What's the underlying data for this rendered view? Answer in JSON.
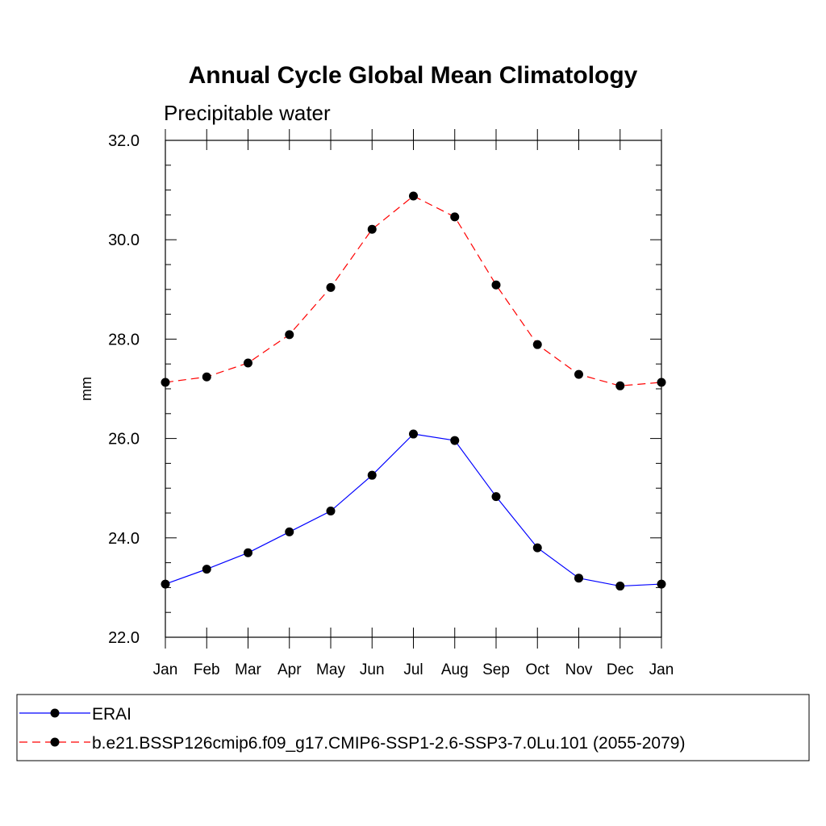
{
  "chart_data": {
    "type": "line",
    "title": "Annual Cycle Global Mean Climatology",
    "subtitle": "Precipitable water",
    "xlabel": "",
    "ylabel": "mm",
    "categories": [
      "Jan",
      "Feb",
      "Mar",
      "Apr",
      "May",
      "Jun",
      "Jul",
      "Aug",
      "Sep",
      "Oct",
      "Nov",
      "Dec",
      "Jan"
    ],
    "ylim": [
      22.0,
      32.0
    ],
    "yticks": [
      "22.0",
      "24.0",
      "26.0",
      "28.0",
      "30.0",
      "32.0"
    ],
    "grid": false,
    "legend_position": "bottom",
    "series": [
      {
        "name": "ERAI",
        "color": "#0000ff",
        "line_style": "solid",
        "marker": "filled-circle",
        "values": [
          23.07,
          23.37,
          23.7,
          24.12,
          24.54,
          25.26,
          26.09,
          25.96,
          24.83,
          23.8,
          23.19,
          23.03,
          23.07
        ]
      },
      {
        "name": "b.e21.BSSP126cmip6.f09_g17.CMIP6-SSP1-2.6-SSP3-7.0Lu.101 (2055-2079)",
        "color": "#ff0000",
        "line_style": "dashed",
        "marker": "filled-circle",
        "values": [
          27.13,
          27.24,
          27.52,
          28.09,
          29.04,
          30.21,
          30.88,
          30.46,
          29.09,
          27.89,
          27.29,
          27.06,
          27.13
        ]
      }
    ]
  }
}
